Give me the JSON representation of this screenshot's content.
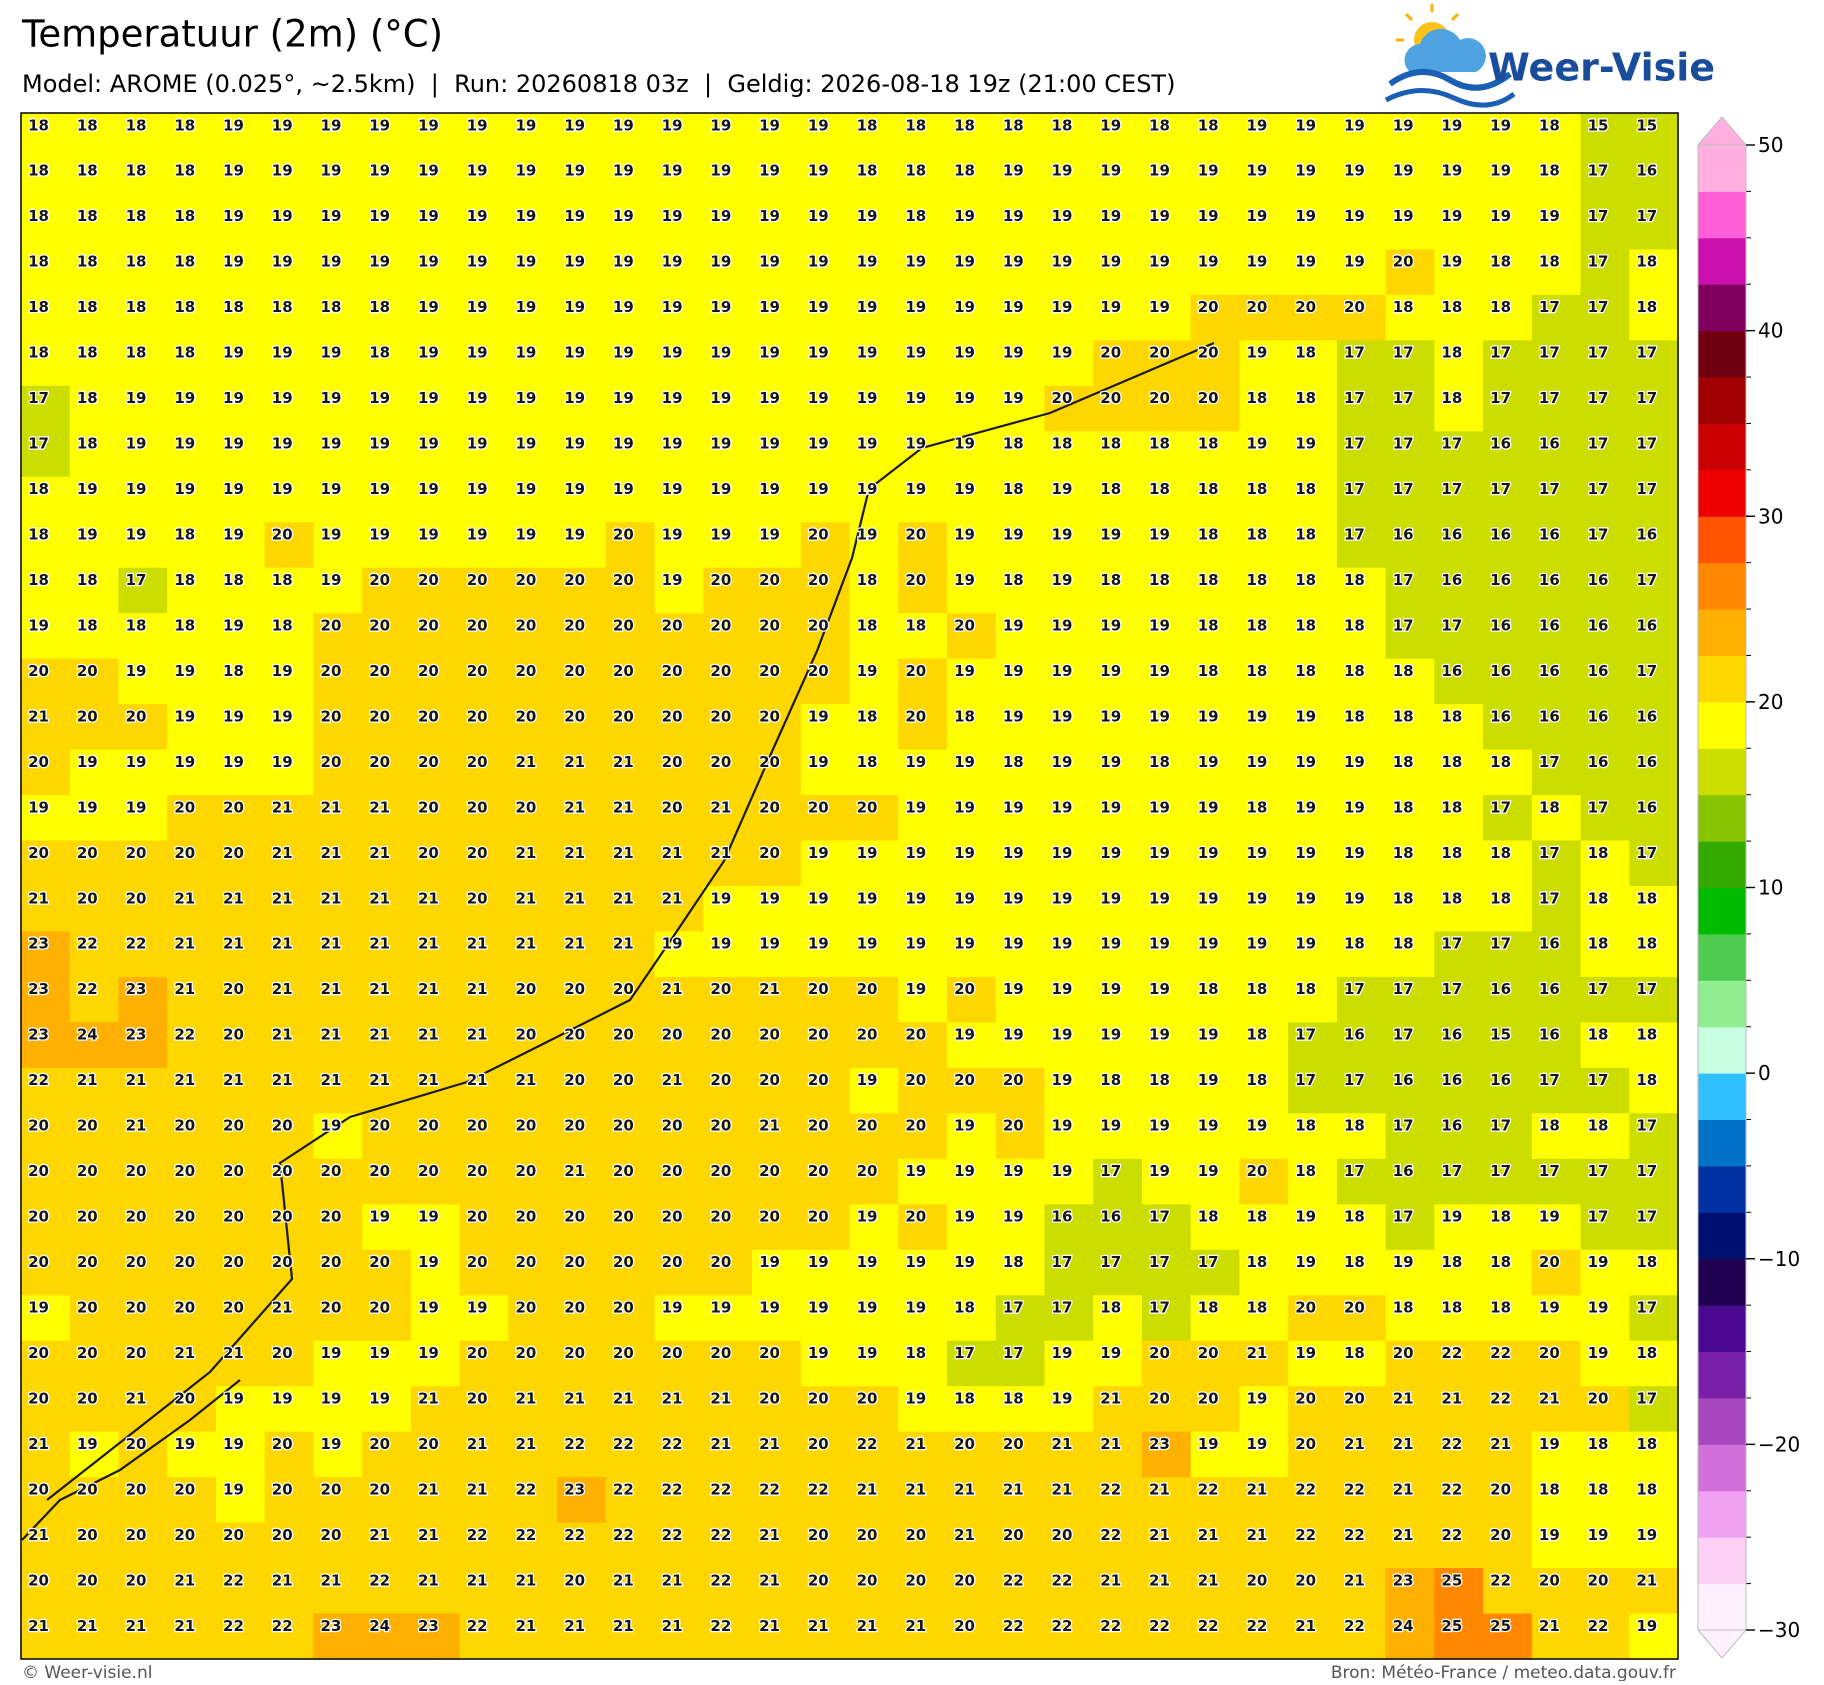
{
  "header": {
    "title": "Temperatuur (2m) (°C)",
    "subtitle": "Model: AROME (0.025°, ~2.5km)  |  Run: 20260818 03z  |  Geldig: 2026-08-18 19z (21:00 CEST)"
  },
  "logo": {
    "text": "Weer-Visie"
  },
  "map": {
    "rows": [
      [
        18,
        18,
        18,
        18,
        19,
        19,
        19,
        19,
        19,
        19,
        19,
        19,
        19,
        19,
        19,
        19,
        19,
        18,
        18,
        18,
        18,
        18,
        19,
        18,
        18,
        19,
        19,
        19,
        19,
        19,
        19,
        18,
        15,
        15
      ],
      [
        18,
        18,
        18,
        18,
        19,
        19,
        19,
        19,
        19,
        19,
        19,
        19,
        19,
        19,
        19,
        19,
        19,
        18,
        18,
        18,
        19,
        19,
        19,
        19,
        19,
        19,
        19,
        19,
        19,
        19,
        19,
        18,
        17,
        16
      ],
      [
        18,
        18,
        18,
        18,
        19,
        19,
        19,
        19,
        19,
        19,
        19,
        19,
        19,
        19,
        19,
        19,
        19,
        19,
        18,
        19,
        19,
        19,
        19,
        19,
        19,
        19,
        19,
        19,
        19,
        19,
        19,
        19,
        17,
        17
      ],
      [
        18,
        18,
        18,
        18,
        19,
        19,
        19,
        19,
        19,
        19,
        19,
        19,
        19,
        19,
        19,
        19,
        19,
        19,
        19,
        19,
        19,
        19,
        19,
        19,
        19,
        19,
        19,
        19,
        20,
        19,
        18,
        18,
        17,
        18
      ],
      [
        18,
        18,
        18,
        18,
        18,
        18,
        18,
        18,
        19,
        19,
        19,
        19,
        19,
        19,
        19,
        19,
        19,
        19,
        19,
        19,
        19,
        19,
        19,
        19,
        20,
        20,
        20,
        20,
        18,
        18,
        18,
        17,
        17,
        18
      ],
      [
        18,
        18,
        18,
        18,
        19,
        19,
        19,
        18,
        19,
        19,
        19,
        19,
        19,
        19,
        19,
        19,
        19,
        19,
        19,
        19,
        19,
        19,
        20,
        20,
        20,
        19,
        18,
        17,
        17,
        18,
        17,
        17,
        17,
        17
      ],
      [
        17,
        18,
        19,
        19,
        19,
        19,
        19,
        19,
        19,
        19,
        19,
        19,
        19,
        19,
        19,
        19,
        19,
        19,
        19,
        19,
        19,
        20,
        20,
        20,
        20,
        18,
        18,
        17,
        17,
        18,
        17,
        17,
        17,
        17
      ],
      [
        17,
        18,
        19,
        19,
        19,
        19,
        19,
        19,
        19,
        19,
        19,
        19,
        19,
        19,
        19,
        19,
        19,
        19,
        19,
        19,
        18,
        18,
        18,
        18,
        18,
        19,
        19,
        17,
        17,
        17,
        16,
        16,
        17,
        17
      ],
      [
        18,
        19,
        19,
        19,
        19,
        19,
        19,
        19,
        19,
        19,
        19,
        19,
        19,
        19,
        19,
        19,
        19,
        19,
        19,
        19,
        18,
        19,
        18,
        18,
        18,
        18,
        18,
        17,
        17,
        17,
        17,
        17,
        17,
        17
      ],
      [
        18,
        19,
        19,
        18,
        19,
        20,
        19,
        19,
        19,
        19,
        19,
        19,
        20,
        19,
        19,
        19,
        20,
        19,
        20,
        19,
        19,
        19,
        19,
        19,
        18,
        18,
        18,
        17,
        16,
        16,
        16,
        16,
        17,
        16
      ],
      [
        18,
        18,
        17,
        18,
        18,
        18,
        19,
        20,
        20,
        20,
        20,
        20,
        20,
        19,
        20,
        20,
        20,
        18,
        20,
        19,
        18,
        19,
        18,
        18,
        18,
        18,
        18,
        18,
        17,
        16,
        16,
        16,
        16,
        17
      ],
      [
        19,
        18,
        18,
        18,
        19,
        18,
        20,
        20,
        20,
        20,
        20,
        20,
        20,
        20,
        20,
        20,
        20,
        18,
        18,
        20,
        19,
        19,
        19,
        19,
        18,
        18,
        18,
        18,
        17,
        17,
        16,
        16,
        16,
        16
      ],
      [
        20,
        20,
        19,
        19,
        18,
        19,
        20,
        20,
        20,
        20,
        20,
        20,
        20,
        20,
        20,
        20,
        20,
        19,
        20,
        19,
        19,
        19,
        19,
        19,
        18,
        18,
        18,
        18,
        18,
        16,
        16,
        16,
        16,
        17
      ],
      [
        21,
        20,
        20,
        19,
        19,
        19,
        20,
        20,
        20,
        20,
        20,
        20,
        20,
        20,
        20,
        20,
        19,
        18,
        20,
        18,
        19,
        19,
        19,
        19,
        19,
        19,
        19,
        18,
        18,
        18,
        16,
        16,
        16,
        16
      ],
      [
        20,
        19,
        19,
        19,
        19,
        19,
        20,
        20,
        20,
        20,
        21,
        21,
        21,
        20,
        20,
        20,
        19,
        18,
        19,
        19,
        18,
        19,
        19,
        18,
        19,
        19,
        19,
        19,
        18,
        18,
        18,
        17,
        16,
        16
      ],
      [
        19,
        19,
        19,
        20,
        20,
        21,
        21,
        21,
        20,
        20,
        20,
        21,
        21,
        20,
        21,
        20,
        20,
        20,
        19,
        19,
        19,
        19,
        19,
        19,
        19,
        18,
        19,
        19,
        18,
        18,
        17,
        18,
        17,
        16
      ],
      [
        20,
        20,
        20,
        20,
        20,
        21,
        21,
        21,
        20,
        20,
        21,
        21,
        21,
        21,
        21,
        20,
        19,
        19,
        19,
        19,
        19,
        19,
        19,
        19,
        19,
        19,
        19,
        19,
        18,
        18,
        18,
        17,
        18,
        17
      ],
      [
        21,
        20,
        20,
        21,
        21,
        21,
        21,
        21,
        21,
        20,
        21,
        21,
        21,
        21,
        19,
        19,
        19,
        19,
        19,
        19,
        19,
        19,
        19,
        19,
        19,
        19,
        19,
        19,
        18,
        18,
        18,
        17,
        18,
        18
      ],
      [
        23,
        22,
        22,
        21,
        21,
        21,
        21,
        21,
        21,
        21,
        21,
        21,
        21,
        19,
        19,
        19,
        19,
        19,
        19,
        19,
        19,
        19,
        19,
        19,
        19,
        19,
        19,
        18,
        18,
        17,
        17,
        16,
        18,
        18
      ],
      [
        23,
        22,
        23,
        21,
        20,
        21,
        21,
        21,
        21,
        21,
        20,
        20,
        20,
        21,
        20,
        21,
        20,
        20,
        19,
        20,
        19,
        19,
        19,
        19,
        18,
        18,
        18,
        17,
        17,
        17,
        16,
        16,
        17,
        17
      ],
      [
        23,
        24,
        23,
        22,
        20,
        21,
        21,
        21,
        21,
        21,
        20,
        20,
        20,
        20,
        20,
        20,
        20,
        20,
        20,
        19,
        19,
        19,
        19,
        19,
        19,
        18,
        17,
        16,
        17,
        16,
        15,
        16,
        18,
        18
      ],
      [
        22,
        21,
        21,
        21,
        21,
        21,
        21,
        21,
        21,
        21,
        21,
        20,
        20,
        21,
        20,
        20,
        20,
        19,
        20,
        20,
        20,
        19,
        18,
        18,
        19,
        18,
        17,
        17,
        16,
        16,
        16,
        17,
        17,
        18
      ],
      [
        20,
        20,
        21,
        20,
        20,
        20,
        19,
        20,
        20,
        20,
        20,
        20,
        20,
        20,
        20,
        21,
        20,
        20,
        20,
        19,
        20,
        19,
        19,
        19,
        19,
        19,
        18,
        18,
        17,
        16,
        17,
        18,
        18,
        17
      ],
      [
        20,
        20,
        20,
        20,
        20,
        20,
        20,
        20,
        20,
        20,
        20,
        21,
        20,
        20,
        20,
        20,
        20,
        20,
        19,
        19,
        19,
        19,
        17,
        19,
        19,
        20,
        18,
        17,
        16,
        17,
        17,
        17,
        17,
        17
      ],
      [
        20,
        20,
        20,
        20,
        20,
        20,
        20,
        19,
        19,
        20,
        20,
        20,
        20,
        20,
        20,
        20,
        20,
        19,
        20,
        19,
        19,
        16,
        16,
        17,
        18,
        18,
        19,
        18,
        17,
        19,
        18,
        19,
        17,
        17
      ],
      [
        20,
        20,
        20,
        20,
        20,
        20,
        20,
        20,
        19,
        20,
        20,
        20,
        20,
        20,
        20,
        19,
        19,
        19,
        19,
        19,
        18,
        17,
        17,
        17,
        17,
        18,
        19,
        18,
        19,
        18,
        18,
        20,
        19,
        18
      ],
      [
        19,
        20,
        20,
        20,
        20,
        21,
        20,
        20,
        19,
        19,
        20,
        20,
        20,
        19,
        19,
        19,
        19,
        19,
        19,
        18,
        17,
        17,
        18,
        17,
        18,
        18,
        20,
        20,
        18,
        18,
        18,
        19,
        19,
        17
      ],
      [
        20,
        20,
        20,
        21,
        21,
        20,
        19,
        19,
        19,
        20,
        20,
        20,
        20,
        20,
        20,
        20,
        19,
        19,
        18,
        17,
        17,
        19,
        19,
        20,
        20,
        21,
        19,
        18,
        20,
        22,
        22,
        20,
        19,
        18
      ],
      [
        20,
        20,
        21,
        20,
        19,
        19,
        19,
        19,
        21,
        20,
        21,
        21,
        21,
        21,
        21,
        20,
        20,
        20,
        19,
        18,
        18,
        19,
        21,
        20,
        20,
        19,
        20,
        20,
        21,
        21,
        22,
        21,
        20,
        17
      ],
      [
        21,
        19,
        20,
        19,
        19,
        20,
        19,
        20,
        20,
        21,
        21,
        22,
        22,
        22,
        21,
        21,
        20,
        22,
        21,
        20,
        20,
        21,
        21,
        23,
        19,
        19,
        20,
        21,
        21,
        22,
        21,
        19,
        18,
        18
      ],
      [
        20,
        20,
        20,
        20,
        19,
        20,
        20,
        20,
        21,
        21,
        22,
        23,
        22,
        22,
        22,
        22,
        22,
        21,
        21,
        21,
        21,
        21,
        22,
        21,
        22,
        21,
        22,
        22,
        21,
        22,
        20,
        18,
        18,
        18
      ],
      [
        21,
        20,
        20,
        20,
        20,
        20,
        20,
        21,
        21,
        22,
        22,
        22,
        22,
        22,
        22,
        21,
        20,
        20,
        20,
        21,
        20,
        20,
        22,
        21,
        21,
        21,
        22,
        22,
        21,
        22,
        20,
        19,
        19,
        19
      ],
      [
        20,
        20,
        20,
        21,
        22,
        21,
        21,
        22,
        21,
        21,
        21,
        20,
        21,
        21,
        22,
        21,
        20,
        20,
        20,
        20,
        22,
        22,
        21,
        21,
        21,
        20,
        20,
        21,
        23,
        25,
        22,
        20,
        20,
        21
      ],
      [
        21,
        21,
        21,
        21,
        22,
        22,
        23,
        24,
        23,
        22,
        21,
        21,
        21,
        21,
        22,
        21,
        21,
        21,
        21,
        20,
        22,
        22,
        22,
        22,
        22,
        22,
        21,
        22,
        24,
        25,
        25,
        21,
        22,
        19
      ]
    ]
  },
  "colorbar": {
    "range": [
      -30,
      50
    ],
    "ticks": [
      50,
      40,
      30,
      20,
      10,
      0,
      {
        "value": -10,
        "label": "−10"
      },
      {
        "value": -20,
        "label": "−20"
      },
      {
        "value": -30,
        "label": "−30"
      }
    ],
    "colors": [
      "#fff0ff",
      "#ffd0f5",
      "#f0a0f0",
      "#d070d8",
      "#a848c0",
      "#7a20a8",
      "#4a0890",
      "#200050",
      "#001070",
      "#0030a0",
      "#0070c8",
      "#30c0ff",
      "#c8ffe0",
      "#90ee90",
      "#50cc50",
      "#00bb00",
      "#33aa00",
      "#88c400",
      "#ccdd00",
      "#ffff00",
      "#ffd700",
      "#ffb000",
      "#ff8800",
      "#ff5500",
      "#ee0000",
      "#cc0000",
      "#a00000",
      "#700010",
      "#800060",
      "#cc10b0",
      "#ff60d8",
      "#ffb0e0"
    ]
  },
  "footer": {
    "left": "© Weer-visie.nl",
    "right": "Bron: Météo-France / meteo.data.gouv.fr"
  }
}
